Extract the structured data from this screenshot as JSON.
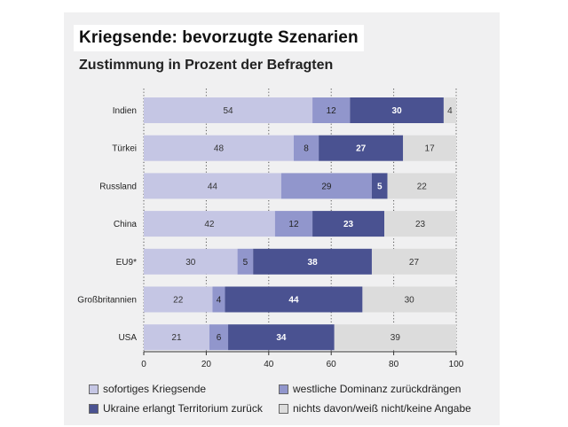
{
  "title": "Kriegsende: bevorzugte Szenarien",
  "subtitle": "Zustimmung in Prozent der Befragten",
  "chart_data": {
    "type": "bar",
    "orientation": "horizontal",
    "stacked": true,
    "title": "Kriegsende: bevorzugte Szenarien",
    "subtitle": "Zustimmung in Prozent der Befragten",
    "categories": [
      "Indien",
      "Türkei",
      "Russland",
      "China",
      "EU9*",
      "Großbritannien",
      "USA"
    ],
    "series": [
      {
        "name": "sofortiges Kriegsende",
        "color": "#c5c6e4",
        "text_color": "#333333",
        "values": [
          54,
          48,
          44,
          42,
          30,
          22,
          21
        ]
      },
      {
        "name": "westliche Dominanz zurückdrängen",
        "color": "#9196cc",
        "text_color": "#222222",
        "values": [
          12,
          8,
          29,
          12,
          5,
          4,
          6
        ]
      },
      {
        "name": "Ukraine erlangt Territorium zurück",
        "color": "#4a5291",
        "text_color": "#ffffff",
        "values": [
          30,
          27,
          5,
          23,
          38,
          44,
          34
        ]
      },
      {
        "name": "nichts davon/weiß nicht/keine Angabe",
        "color": "#dcdcdc",
        "text_color": "#333333",
        "values": [
          4,
          17,
          22,
          23,
          27,
          30,
          39
        ]
      }
    ],
    "xlim": [
      0,
      100
    ],
    "xticks": [
      0,
      20,
      40,
      60,
      80,
      100
    ],
    "xlabel": "",
    "ylabel": "",
    "grid": true,
    "legend_position": "bottom"
  }
}
